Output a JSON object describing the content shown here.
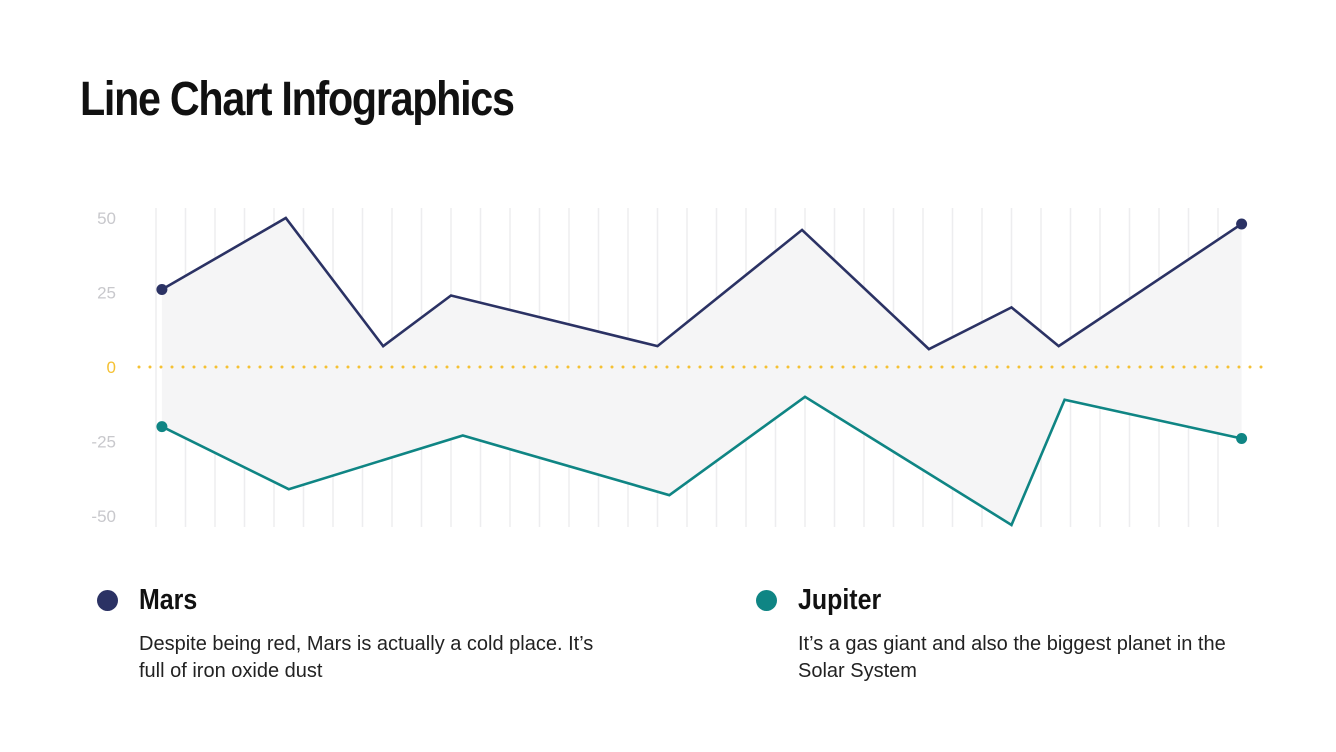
{
  "title": "Line Chart Infographics",
  "chart_data": {
    "type": "line",
    "title": "Line Chart Infographics",
    "xlabel": "",
    "ylabel": "",
    "ylim": [
      -50,
      50
    ],
    "xlim": [
      0,
      37
    ],
    "yticks": [
      "50",
      "25",
      "0",
      "-25",
      "-50"
    ],
    "ytick_values": [
      50,
      25,
      0,
      -25,
      -50
    ],
    "grid": "vertical",
    "zero_line": {
      "style": "dotted",
      "color": "#F5C133"
    },
    "fill_between_series": "#F5F5F6",
    "series": [
      {
        "name": "Mars",
        "color": "#2B3264",
        "x": [
          0.2,
          4.4,
          7.7,
          10,
          17,
          21.9,
          26.2,
          29,
          30.6,
          36.8
        ],
        "values": [
          26,
          50,
          7,
          24,
          7,
          46,
          6,
          20,
          7,
          48
        ]
      },
      {
        "name": "Jupiter",
        "color": "#0F8584",
        "x": [
          0.2,
          4.5,
          10.4,
          17.4,
          22,
          29,
          30.8,
          36.8
        ],
        "values": [
          -20,
          -41,
          -23,
          -43,
          -10,
          -53,
          -11,
          -24
        ]
      }
    ]
  },
  "legend": [
    {
      "name": "Mars",
      "color": "#2B3264",
      "description": "Despite being red, Mars is actually a cold place. It’s full of iron oxide dust"
    },
    {
      "name": "Jupiter",
      "color": "#0F8584",
      "description": "It’s a gas giant and also the biggest planet in the Solar System"
    }
  ]
}
